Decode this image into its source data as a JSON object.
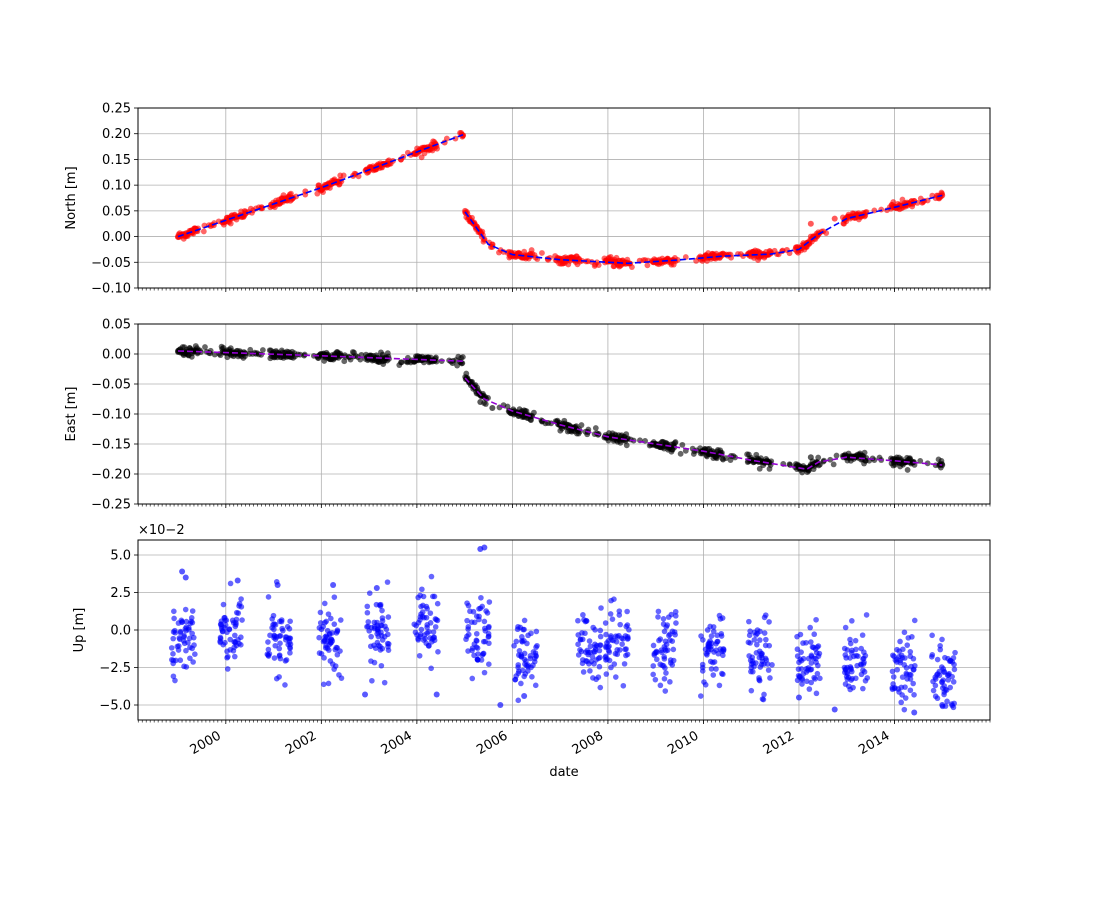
{
  "chart_data": [
    {
      "type": "scatter",
      "panel": "north",
      "xlabel": "",
      "ylabel": "North [m]",
      "ylim": [
        -0.1,
        0.25
      ],
      "yticks": [
        -0.1,
        -0.05,
        0.0,
        0.05,
        0.1,
        0.15,
        0.2,
        0.25
      ],
      "ytick_labels": [
        "−0.10",
        "−0.05",
        "0.00",
        "0.05",
        "0.10",
        "0.15",
        "0.20",
        "0.25"
      ],
      "xlim": [
        "1998-03-01",
        "2016-01-01"
      ],
      "grid": true,
      "series": [
        {
          "kind": "points",
          "color": "#ff0000",
          "points": [
            [
              "1999-01-01",
              0.0
            ],
            [
              "1999-04-15",
              0.008
            ],
            [
              "1999-10-01",
              0.022
            ],
            [
              "2000-02-01",
              0.035
            ],
            [
              "2000-06-01",
              0.045
            ],
            [
              "2000-10-01",
              0.057
            ],
            [
              "2001-03-01",
              0.073
            ],
            [
              "2001-09-01",
              0.088
            ],
            [
              "2002-03-01",
              0.102
            ],
            [
              "2002-09-01",
              0.118
            ],
            [
              "2003-03-01",
              0.138
            ],
            [
              "2003-09-01",
              0.15
            ],
            [
              "2004-03-01",
              0.17
            ],
            [
              "2004-08-01",
              0.183
            ],
            [
              "2004-12-20",
              0.197
            ],
            [
              "2005-01-05",
              0.05
            ],
            [
              "2005-04-01",
              0.02
            ],
            [
              "2005-08-01",
              -0.02
            ],
            [
              "2006-04-01",
              -0.04
            ],
            [
              "2006-10-01",
              -0.045
            ],
            [
              "2007-08-01",
              -0.048
            ],
            [
              "2008-03-01",
              -0.05
            ],
            [
              "2008-09-01",
              -0.047
            ],
            [
              "2009-04-01",
              -0.043
            ],
            [
              "2010-03-01",
              -0.037
            ],
            [
              "2011-03-01",
              -0.03
            ],
            [
              "2011-10-01",
              -0.026
            ],
            [
              "2012-03-01",
              -0.02
            ],
            [
              "2012-04-01",
              0.025
            ],
            [
              "2012-10-01",
              0.035
            ],
            [
              "2013-04-01",
              0.045
            ],
            [
              "2014-01-01",
              0.058
            ],
            [
              "2014-08-01",
              0.066
            ],
            [
              "2015-01-01",
              0.08
            ]
          ]
        },
        {
          "kind": "fit-line",
          "color": "#0000ff",
          "dashed": true,
          "segments": [
            [
              [
                "1999-01-01",
                0.0
              ],
              [
                "2002-01-01",
                0.095
              ],
              [
                "2004-12-20",
                0.198
              ]
            ],
            [
              [
                "2005-01-05",
                0.048
              ],
              [
                "2005-07-01",
                -0.015
              ],
              [
                "2006-01-01",
                -0.035
              ],
              [
                "2007-01-01",
                -0.045
              ],
              [
                "2008-06-01",
                -0.052
              ],
              [
                "2009-06-01",
                -0.046
              ],
              [
                "2010-06-01",
                -0.038
              ],
              [
                "2011-06-01",
                -0.034
              ],
              [
                "2012-01-01",
                -0.025
              ],
              [
                "2012-06-01",
                0.005
              ],
              [
                "2013-01-01",
                0.035
              ],
              [
                "2014-01-01",
                0.057
              ],
              [
                "2015-01-01",
                0.08
              ]
            ]
          ]
        }
      ]
    },
    {
      "type": "scatter",
      "panel": "east",
      "xlabel": "",
      "ylabel": "East [m]",
      "ylim": [
        -0.25,
        0.05
      ],
      "yticks": [
        -0.25,
        -0.2,
        -0.15,
        -0.1,
        -0.05,
        0.0,
        0.05
      ],
      "ytick_labels": [
        "−0.25",
        "−0.20",
        "−0.15",
        "−0.10",
        "−0.05",
        "0.00",
        "0.05"
      ],
      "xlim": [
        "1998-03-01",
        "2016-01-01"
      ],
      "grid": true,
      "series": [
        {
          "kind": "points",
          "color": "#000000",
          "points": [
            [
              "1999-01-01",
              0.005
            ],
            [
              "1999-06-01",
              0.003
            ],
            [
              "2000-02-01",
              0.004
            ],
            [
              "2001-01-01",
              0.0
            ],
            [
              "2002-02-01",
              -0.003
            ],
            [
              "2003-03-01",
              -0.006
            ],
            [
              "2004-01-01",
              -0.01
            ],
            [
              "2004-10-01",
              -0.015
            ],
            [
              "2005-01-15",
              -0.04
            ],
            [
              "2005-05-01",
              -0.08
            ],
            [
              "2005-08-01",
              -0.09
            ],
            [
              "2006-04-01",
              -0.105
            ],
            [
              "2006-10-01",
              -0.115
            ],
            [
              "2007-08-01",
              -0.13
            ],
            [
              "2008-03-01",
              -0.14
            ],
            [
              "2009-01-01",
              -0.15
            ],
            [
              "2010-01-01",
              -0.162
            ],
            [
              "2010-08-01",
              -0.17
            ],
            [
              "2011-03-01",
              -0.18
            ],
            [
              "2012-01-01",
              -0.19
            ],
            [
              "2012-04-01",
              -0.172
            ],
            [
              "2013-01-01",
              -0.17
            ],
            [
              "2014-01-01",
              -0.178
            ],
            [
              "2015-01-01",
              -0.185
            ]
          ]
        },
        {
          "kind": "fit-line",
          "color": "#9400d3",
          "dashed": true,
          "segments": [
            [
              [
                "1999-01-01",
                0.005
              ],
              [
                "2002-01-01",
                -0.003
              ],
              [
                "2004-12-20",
                -0.012
              ]
            ],
            [
              [
                "2005-01-05",
                -0.04
              ],
              [
                "2005-06-01",
                -0.075
              ],
              [
                "2006-01-01",
                -0.095
              ],
              [
                "2007-01-01",
                -0.118
              ],
              [
                "2008-01-01",
                -0.138
              ],
              [
                "2009-01-01",
                -0.15
              ],
              [
                "2010-01-01",
                -0.162
              ],
              [
                "2011-01-01",
                -0.177
              ],
              [
                "2012-03-01",
                -0.192
              ],
              [
                "2012-06-01",
                -0.18
              ],
              [
                "2013-01-01",
                -0.172
              ],
              [
                "2014-01-01",
                -0.178
              ],
              [
                "2015-01-01",
                -0.185
              ]
            ]
          ]
        }
      ]
    },
    {
      "type": "scatter",
      "panel": "up",
      "xlabel": "date",
      "ylabel": "Up [m]",
      "offset_label": "×10−2",
      "ylim": [
        -6.0,
        6.0
      ],
      "yticks": [
        -5.0,
        -2.5,
        0.0,
        2.5,
        5.0
      ],
      "ytick_labels": [
        "−5.0",
        "−2.5",
        "0.0",
        "2.5",
        "5.0"
      ],
      "xlim": [
        "1998-03-01",
        "2016-01-01"
      ],
      "grid": true,
      "x_tick_labels": [
        "2000",
        "2002",
        "2004",
        "2006",
        "2008",
        "2010",
        "2012",
        "2014"
      ],
      "series": [
        {
          "kind": "points",
          "color": "#0000ff",
          "points": [
            [
              "1999-02-01",
              3.9
            ],
            [
              "1999-03-01",
              3.5
            ],
            [
              "2000-04-01",
              3.3
            ],
            [
              "2001-02-01",
              3.0
            ],
            [
              "2002-04-01",
              3.0
            ],
            [
              "2003-03-01",
              2.8
            ],
            [
              "2005-05-01",
              5.4
            ],
            [
              "2005-06-01",
              5.5
            ],
            [
              "2005-10-01",
              -5.0
            ],
            [
              "2012-01-01",
              -4.5
            ],
            [
              "2012-10-01",
              -5.3
            ],
            [
              "2014-06-01",
              -5.5
            ],
            [
              "2015-01-01",
              -5.0
            ],
            [
              "2004-06-01",
              -4.3
            ],
            [
              "2002-12-01",
              -4.3
            ],
            [
              "2006-04-01",
              -4.4
            ]
          ],
          "clusters": [
            [
              "1999-02-01",
              -0.5
            ],
            [
              "2000-02-01",
              -0.2
            ],
            [
              "2001-02-01",
              -0.8
            ],
            [
              "2002-03-01",
              -0.7
            ],
            [
              "2003-03-01",
              -0.3
            ],
            [
              "2004-03-01",
              0.0
            ],
            [
              "2005-04-01",
              -0.5
            ],
            [
              "2006-04-01",
              -1.5
            ],
            [
              "2007-08-01",
              -1.2
            ],
            [
              "2008-03-01",
              -1.3
            ],
            [
              "2009-03-01",
              -1.2
            ],
            [
              "2010-03-01",
              -1.3
            ],
            [
              "2011-03-01",
              -1.7
            ],
            [
              "2012-03-01",
              -2.2
            ],
            [
              "2013-03-01",
              -2.0
            ],
            [
              "2014-03-01",
              -2.5
            ],
            [
              "2015-01-01",
              -3.2
            ]
          ]
        }
      ]
    }
  ]
}
